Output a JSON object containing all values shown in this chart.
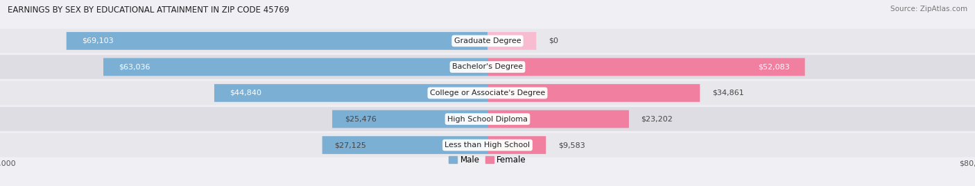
{
  "title": "EARNINGS BY SEX BY EDUCATIONAL ATTAINMENT IN ZIP CODE 45769",
  "source": "Source: ZipAtlas.com",
  "categories": [
    "Less than High School",
    "High School Diploma",
    "College or Associate's Degree",
    "Bachelor's Degree",
    "Graduate Degree"
  ],
  "male_values": [
    27125,
    25476,
    44840,
    63036,
    69103
  ],
  "female_values": [
    9583,
    23202,
    34861,
    52083,
    0
  ],
  "female_zero_display": 8000,
  "male_color": "#7bafd4",
  "female_color": "#f07fa0",
  "female_light_color": "#f7bcd0",
  "max_value": 80000,
  "row_colors": [
    "#e8e8ec",
    "#dddde3"
  ],
  "label_fontsize": 8.0,
  "title_fontsize": 8.5,
  "source_fontsize": 7.5,
  "value_fontsize": 8.0
}
